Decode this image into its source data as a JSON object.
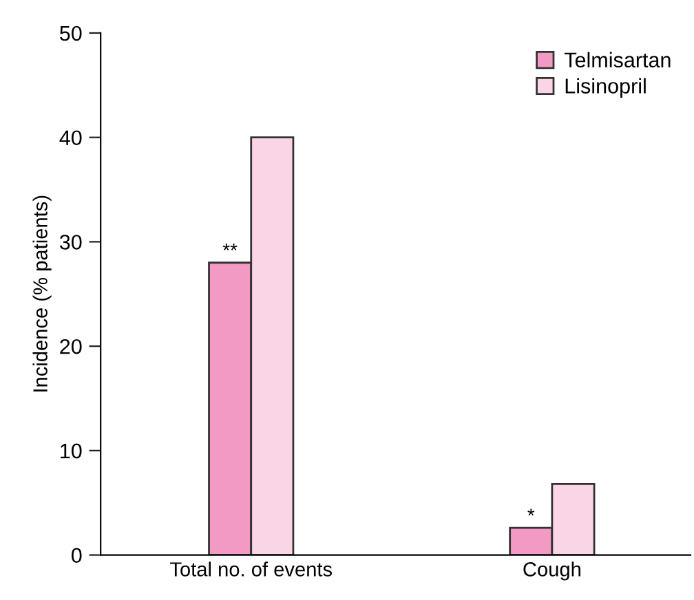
{
  "chart_data": {
    "type": "bar",
    "ylabel": "Incidence (% patients)",
    "categories": [
      "Total no. of events",
      "Cough"
    ],
    "series": [
      {
        "name": "Telmisartan",
        "color": "#f29ac3",
        "values": [
          28,
          2.6
        ]
      },
      {
        "name": "Lisinopril",
        "color": "#f9d5e6",
        "values": [
          40,
          6.8
        ]
      }
    ],
    "ylim": [
      0,
      50
    ],
    "yticks": [
      0,
      10,
      20,
      30,
      40,
      50
    ],
    "grid": false,
    "legend": "top right",
    "annotations": [
      {
        "text": "**",
        "x": "Total no. of events",
        "y": 28
      },
      {
        "text": "*",
        "x": "Cough",
        "y": 2.6
      }
    ]
  }
}
